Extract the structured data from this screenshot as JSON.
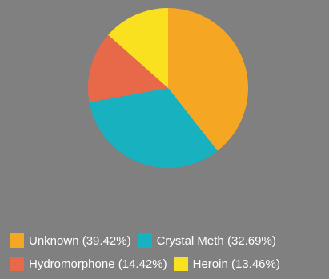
{
  "chart_data": {
    "type": "pie",
    "title": "",
    "legend_position": "bottom",
    "series": [
      {
        "name": "Unknown",
        "percent_label": "(39.42%)",
        "value": 39.42,
        "color": "#f5a623"
      },
      {
        "name": "Crystal Meth",
        "percent_label": "(32.69%)",
        "value": 32.69,
        "color": "#17b1c0"
      },
      {
        "name": "Hydromorphone",
        "percent_label": "(14.42%)",
        "value": 14.42,
        "color": "#e8694a"
      },
      {
        "name": "Heroin",
        "percent_label": "(13.46%)",
        "value": 13.46,
        "color": "#f9e11f"
      }
    ]
  }
}
